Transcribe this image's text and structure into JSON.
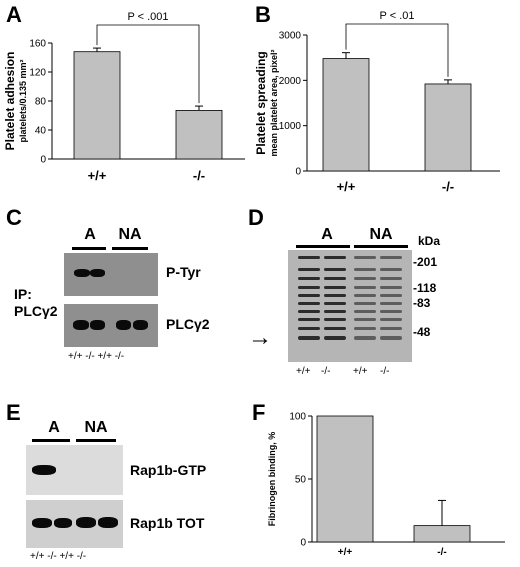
{
  "panels": {
    "A": {
      "label": "A"
    },
    "B": {
      "label": "B"
    },
    "C": {
      "label": "C"
    },
    "D": {
      "label": "D"
    },
    "E": {
      "label": "E"
    },
    "F": {
      "label": "F"
    }
  },
  "chart_data": [
    {
      "panel": "A",
      "type": "bar",
      "categories": [
        "+/+",
        "-/-"
      ],
      "values": [
        148,
        67
      ],
      "errors": [
        5,
        6
      ],
      "ylabel": "Platelet adhesion",
      "ylabel_sub": "platelets/0.135 mm²",
      "ylim": [
        0,
        160
      ],
      "yticks": [
        "0",
        "40",
        "80",
        "120",
        "160"
      ],
      "annotation": "P < .001"
    },
    {
      "panel": "B",
      "type": "bar",
      "categories": [
        "+/+",
        "-/-"
      ],
      "values": [
        2480,
        1920
      ],
      "errors": [
        130,
        90
      ],
      "ylabel": "Platelet spreading",
      "ylabel_sub": "mean platelet area, pixel²",
      "ylim": [
        0,
        3000
      ],
      "yticks": [
        "0",
        "1000",
        "2000",
        "3000"
      ],
      "annotation": "P < .01"
    },
    {
      "panel": "F",
      "type": "bar",
      "categories": [
        "+/+",
        "-/-"
      ],
      "values": [
        100,
        13
      ],
      "errors": [
        0,
        20
      ],
      "ylabel": "Fibrinogen binding, %",
      "ylim": [
        0,
        100
      ],
      "yticks": [
        "0",
        "50",
        "100"
      ]
    }
  ],
  "blots": {
    "C": {
      "groups": [
        "A",
        "NA"
      ],
      "ip_label": "IP:",
      "ip_target": "PLCγ2",
      "rows": [
        "P-Tyr",
        "PLCγ2"
      ],
      "genotypes": "+/+ -/-  +/+ -/-"
    },
    "D": {
      "groups": [
        "A",
        "NA"
      ],
      "unit": "kDa",
      "markers": [
        "-201",
        "-118",
        "-83",
        "-48"
      ],
      "genotypes": [
        "+/+",
        "-/-",
        "+/+",
        "-/-"
      ],
      "arrow": "→"
    },
    "E": {
      "groups": [
        "A",
        "NA"
      ],
      "rows": [
        "Rap1b-GTP",
        "Rap1b TOT"
      ],
      "genotypes": "+/+ -/-  +/+ -/-"
    }
  }
}
